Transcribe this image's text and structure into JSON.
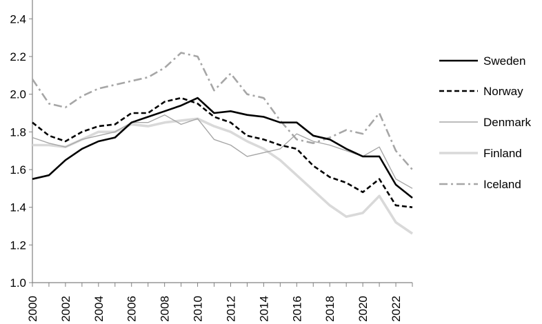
{
  "chart_data": {
    "type": "line",
    "title": "",
    "xlabel": "",
    "ylabel": "",
    "x": [
      2000,
      2001,
      2002,
      2003,
      2004,
      2005,
      2006,
      2007,
      2008,
      2009,
      2010,
      2011,
      2012,
      2013,
      2014,
      2015,
      2016,
      2017,
      2018,
      2019,
      2020,
      2021,
      2022,
      2023
    ],
    "xticks": [
      "2000",
      "2002",
      "2004",
      "2006",
      "2008",
      "2010",
      "2012",
      "2014",
      "2016",
      "2018",
      "2020",
      "2022"
    ],
    "yticks": [
      "1.0",
      "1.2",
      "1.4",
      "1.6",
      "1.8",
      "2.0",
      "2.2",
      "2.4"
    ],
    "xlim": [
      2000,
      2023
    ],
    "ylim": [
      1.0,
      2.5
    ],
    "grid": false,
    "legend_position": "right",
    "series": [
      {
        "name": "Sweden",
        "color": "#000000",
        "style": "solid-thick",
        "values": [
          1.55,
          1.57,
          1.65,
          1.71,
          1.75,
          1.77,
          1.85,
          1.88,
          1.91,
          1.94,
          1.98,
          1.9,
          1.91,
          1.89,
          1.88,
          1.85,
          1.85,
          1.78,
          1.76,
          1.71,
          1.67,
          1.67,
          1.52,
          1.45
        ]
      },
      {
        "name": "Norway",
        "color": "#000000",
        "style": "dashed",
        "values": [
          1.85,
          1.78,
          1.75,
          1.8,
          1.83,
          1.84,
          1.9,
          1.9,
          1.96,
          1.98,
          1.95,
          1.88,
          1.85,
          1.78,
          1.76,
          1.73,
          1.71,
          1.62,
          1.56,
          1.53,
          1.48,
          1.55,
          1.41,
          1.4
        ]
      },
      {
        "name": "Denmark",
        "color": "#a6a6a6",
        "style": "solid-thin",
        "values": [
          1.77,
          1.74,
          1.72,
          1.76,
          1.78,
          1.8,
          1.85,
          1.85,
          1.89,
          1.84,
          1.87,
          1.76,
          1.73,
          1.67,
          1.69,
          1.71,
          1.79,
          1.75,
          1.73,
          1.7,
          1.67,
          1.72,
          1.55,
          1.5
        ]
      },
      {
        "name": "Finland",
        "color": "#d9d9d9",
        "style": "solid-thick",
        "values": [
          1.73,
          1.73,
          1.72,
          1.76,
          1.8,
          1.8,
          1.84,
          1.83,
          1.85,
          1.86,
          1.87,
          1.83,
          1.8,
          1.75,
          1.71,
          1.65,
          1.57,
          1.49,
          1.41,
          1.35,
          1.37,
          1.46,
          1.32,
          1.26
        ]
      },
      {
        "name": "Iceland",
        "color": "#a6a6a6",
        "style": "dash-dot",
        "values": [
          2.08,
          1.95,
          1.93,
          1.99,
          2.03,
          2.05,
          2.07,
          2.09,
          2.14,
          2.22,
          2.2,
          2.02,
          2.11,
          2.0,
          1.98,
          1.86,
          1.76,
          1.74,
          1.77,
          1.81,
          1.79,
          1.9,
          1.7,
          1.6
        ]
      }
    ]
  }
}
